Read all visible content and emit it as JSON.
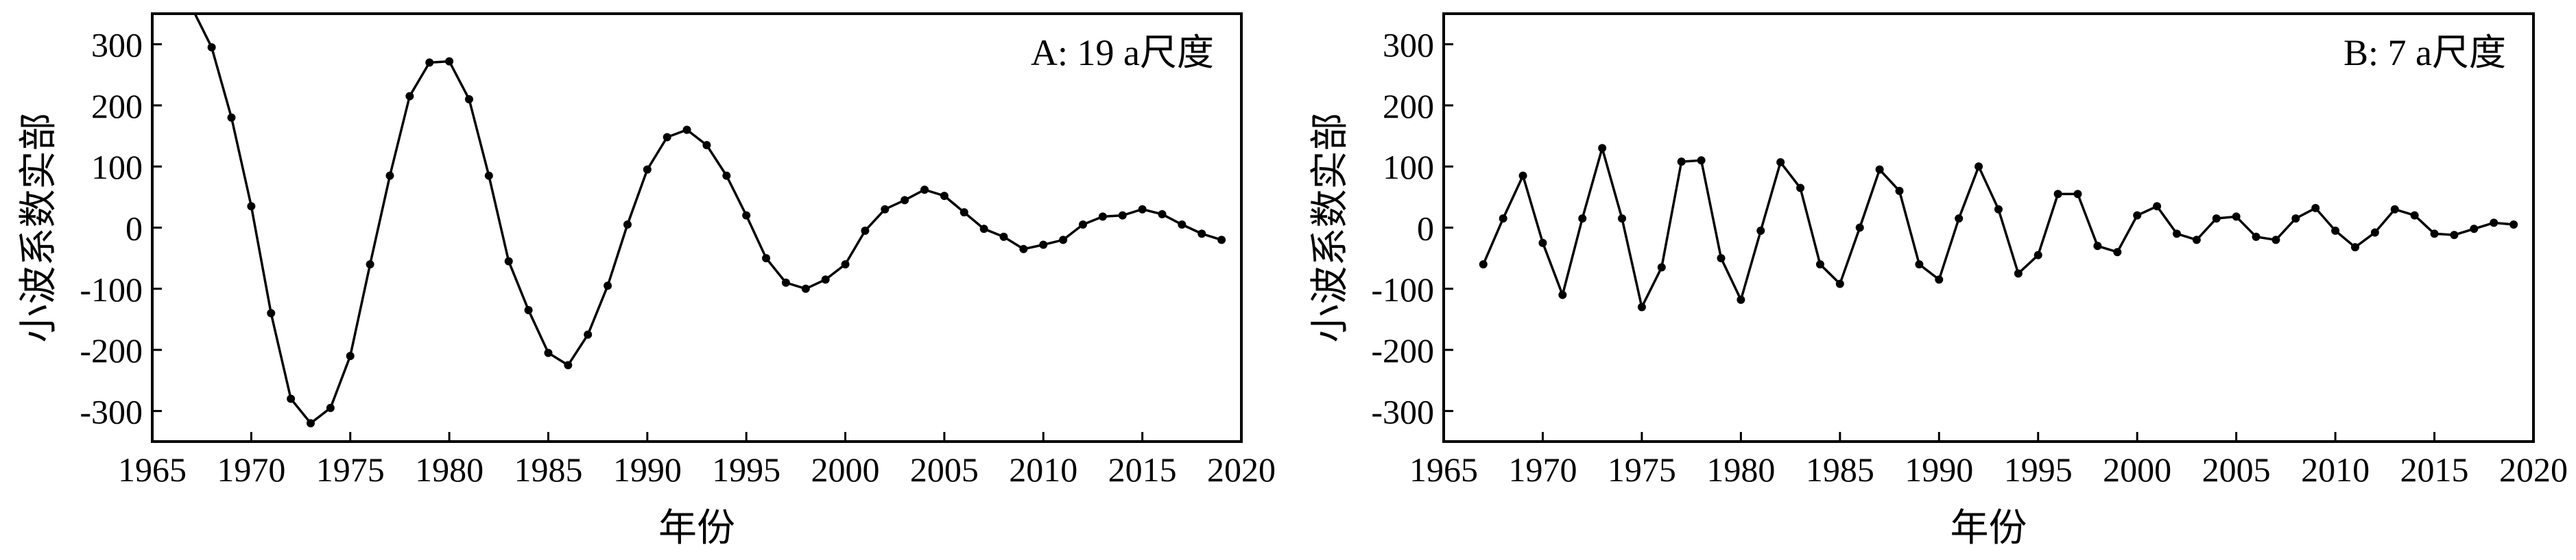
{
  "chart_data": [
    {
      "type": "line",
      "panel_label": "A: 19 a尺度",
      "ylabel": "小波系数实部",
      "xlabel": "年份",
      "xlim": [
        1965,
        2020
      ],
      "ylim": [
        -350,
        350
      ],
      "xticks": [
        1965,
        1970,
        1975,
        1980,
        1985,
        1990,
        1995,
        2000,
        2005,
        2010,
        2015,
        2020
      ],
      "yticks": [
        -300,
        -200,
        -100,
        0,
        100,
        200,
        300
      ],
      "grid": false,
      "x": [
        1967,
        1968,
        1969,
        1970,
        1971,
        1972,
        1973,
        1974,
        1975,
        1976,
        1977,
        1978,
        1979,
        1980,
        1981,
        1982,
        1983,
        1984,
        1985,
        1986,
        1987,
        1988,
        1989,
        1990,
        1991,
        1992,
        1993,
        1994,
        1995,
        1996,
        1997,
        1998,
        1999,
        2000,
        2001,
        2002,
        2003,
        2004,
        2005,
        2006,
        2007,
        2008,
        2009,
        2010,
        2011,
        2012,
        2013,
        2014,
        2015,
        2016,
        2017,
        2018,
        2019
      ],
      "values": [
        360,
        295,
        180,
        35,
        -140,
        -280,
        -320,
        -295,
        -210,
        -60,
        85,
        215,
        270,
        272,
        210,
        85,
        -55,
        -135,
        -205,
        -225,
        -175,
        -95,
        5,
        95,
        148,
        160,
        135,
        85,
        20,
        -50,
        -90,
        -100,
        -85,
        -60,
        -5,
        30,
        45,
        62,
        52,
        25,
        -2,
        -15,
        -35,
        -28,
        -20,
        5,
        18,
        20,
        30,
        22,
        5,
        -10,
        -20
      ]
    },
    {
      "type": "line",
      "panel_label": "B: 7 a尺度",
      "ylabel": "小波系数实部",
      "xlabel": "年份",
      "xlim": [
        1965,
        2020
      ],
      "ylim": [
        -350,
        350
      ],
      "xticks": [
        1965,
        1970,
        1975,
        1980,
        1985,
        1990,
        1995,
        2000,
        2005,
        2010,
        2015,
        2020
      ],
      "yticks": [
        -300,
        -200,
        -100,
        0,
        100,
        200,
        300
      ],
      "grid": false,
      "x": [
        1967,
        1968,
        1969,
        1970,
        1971,
        1972,
        1973,
        1974,
        1975,
        1976,
        1977,
        1978,
        1979,
        1980,
        1981,
        1982,
        1983,
        1984,
        1985,
        1986,
        1987,
        1988,
        1989,
        1990,
        1991,
        1992,
        1993,
        1994,
        1995,
        1996,
        1997,
        1998,
        1999,
        2000,
        2001,
        2002,
        2003,
        2004,
        2005,
        2006,
        2007,
        2008,
        2009,
        2010,
        2011,
        2012,
        2013,
        2014,
        2015,
        2016,
        2017,
        2018,
        2019
      ],
      "values": [
        -60,
        15,
        85,
        -25,
        -110,
        15,
        130,
        15,
        -130,
        -65,
        108,
        110,
        -50,
        -118,
        -5,
        107,
        65,
        -60,
        -92,
        0,
        95,
        60,
        -60,
        -85,
        15,
        100,
        30,
        -75,
        -45,
        55,
        55,
        -30,
        -40,
        20,
        35,
        -10,
        -20,
        15,
        18,
        -15,
        -20,
        15,
        32,
        -5,
        -32,
        -8,
        30,
        20,
        -10,
        -12,
        -2,
        8,
        5
      ]
    }
  ]
}
